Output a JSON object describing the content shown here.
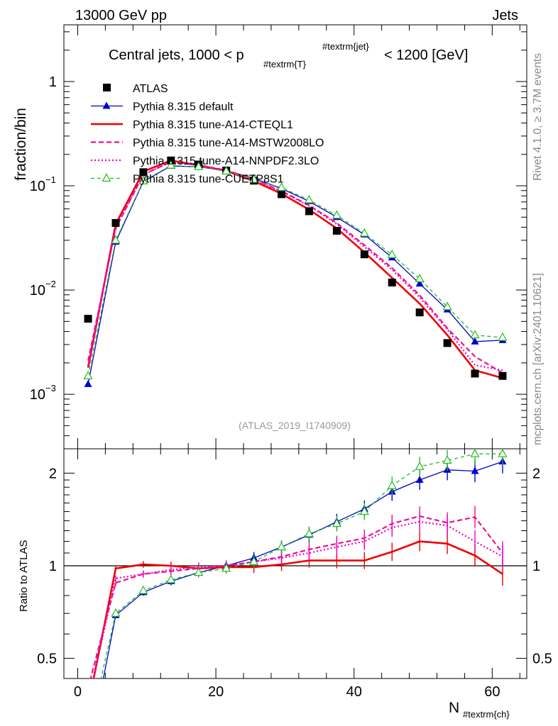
{
  "header": {
    "left": "13000 GeV pp",
    "right": "Jets"
  },
  "side": {
    "rivet": "Rivet 4.1.0, ≥ 3.7M events",
    "mcplots": "mcplots.cern.ch [arXiv:2401.10621]"
  },
  "colors": {
    "atlas": "#000000",
    "default": "#0000cc",
    "cteql1": "#ee0000",
    "mstw": "#ee1188",
    "nnpdf": "#ee00cc",
    "cuetp8s1": "#22bb22"
  },
  "chart_data": [
    {
      "type": "line",
      "title": "Central jets, 1000 < p",
      "title_sub": "#textrm{T}",
      "title_sup": "#textrm{jet}",
      "title_tail": "< 1200 [GeV]",
      "ylabel": "fraction/bin",
      "yscale": "log",
      "ylim": [
        0.0003,
        3.5
      ],
      "xlim": [
        -2,
        65
      ],
      "y_ticks": [
        {
          "value": 1,
          "base": "1",
          "exp": ""
        },
        {
          "value": 0.1,
          "base": "10",
          "exp": "−1"
        },
        {
          "value": 0.01,
          "base": "10",
          "exp": "−2"
        },
        {
          "value": 0.001,
          "base": "10",
          "exp": "−3"
        }
      ],
      "watermark": "(ATLAS_2019_I1740909)",
      "x": [
        1.5,
        5.5,
        9.5,
        13.5,
        17.5,
        21.5,
        25.5,
        29.5,
        33.5,
        37.5,
        41.5,
        45.5,
        49.5,
        53.5,
        57.5,
        61.5
      ],
      "series": [
        {
          "key": "atlas",
          "name": "ATLAS",
          "marker": "square",
          "line": "none",
          "values": [
            0.0053,
            0.044,
            0.135,
            0.175,
            0.16,
            0.14,
            0.112,
            0.083,
            0.057,
            0.037,
            0.022,
            0.0118,
            0.0061,
            0.0031,
            0.00158,
            0.0015
          ]
        },
        {
          "key": "default",
          "name": "Pythia 8.315 default",
          "marker": "triangle-up",
          "line": "solid",
          "values": [
            0.00125,
            0.029,
            0.11,
            0.155,
            0.152,
            0.14,
            0.118,
            0.094,
            0.071,
            0.05,
            0.034,
            0.0205,
            0.0115,
            0.0065,
            0.0032,
            0.0033
          ]
        },
        {
          "key": "cteql1",
          "name": "Pythia 8.315 tune-A14-CTEQL1",
          "marker": "none",
          "line": "solid-thick",
          "values": [
            0.0018,
            0.043,
            0.137,
            0.175,
            0.157,
            0.139,
            0.111,
            0.084,
            0.059,
            0.039,
            0.023,
            0.0131,
            0.0074,
            0.0037,
            0.0017,
            0.00143
          ]
        },
        {
          "key": "mstw",
          "name": "Pythia 8.315 tune-A14-MSTW2008LO",
          "marker": "none",
          "line": "dashed",
          "values": [
            0.0021,
            0.039,
            0.128,
            0.17,
            0.158,
            0.141,
            0.116,
            0.089,
            0.065,
            0.044,
            0.027,
            0.0163,
            0.0089,
            0.0043,
            0.0023,
            0.0016
          ]
        },
        {
          "key": "nnpdf",
          "name": "Pythia 8.315 tune-A14-NNPDF2.3LO",
          "marker": "none",
          "line": "dotted",
          "values": [
            0.0019,
            0.04,
            0.128,
            0.169,
            0.158,
            0.14,
            0.115,
            0.088,
            0.064,
            0.043,
            0.026,
            0.0157,
            0.0085,
            0.0042,
            0.0019,
            0.0017
          ]
        },
        {
          "key": "cuetp8s1",
          "name": "Pythia 8.315 tune-CUETP8S1",
          "marker": "triangle-open",
          "line": "dashed-thin",
          "values": [
            0.0015,
            0.03,
            0.111,
            0.157,
            0.152,
            0.138,
            0.115,
            0.096,
            0.073,
            0.052,
            0.035,
            0.0218,
            0.0128,
            0.0069,
            0.0037,
            0.0035
          ]
        }
      ]
    },
    {
      "type": "line",
      "ylabel": "Ratio to ATLAS",
      "xlabel": "N",
      "xlabel_sub": "#textrm{ch}",
      "yscale": "log",
      "ylim": [
        0.43,
        2.4
      ],
      "xlim": [
        -2,
        65
      ],
      "x_ticks": [
        0,
        20,
        40,
        60
      ],
      "y_ticks": [
        0.5,
        1,
        2
      ],
      "reference_line": 1,
      "x": [
        1.5,
        5.5,
        9.5,
        13.5,
        17.5,
        21.5,
        25.5,
        29.5,
        33.5,
        37.5,
        41.5,
        45.5,
        49.5,
        53.5,
        57.5,
        61.5
      ],
      "series": [
        {
          "key": "default",
          "values": [
            0.24,
            0.69,
            0.82,
            0.89,
            0.95,
            1.0,
            1.06,
            1.15,
            1.26,
            1.39,
            1.53,
            1.74,
            1.9,
            2.05,
            2.03,
            2.18
          ]
        },
        {
          "key": "cteql1",
          "values": [
            0.35,
            0.98,
            1.01,
            1.0,
            0.98,
            0.99,
            0.99,
            1.01,
            1.04,
            1.04,
            1.04,
            1.11,
            1.2,
            1.18,
            1.08,
            0.94
          ]
        },
        {
          "key": "mstw",
          "values": [
            0.4,
            0.88,
            0.94,
            0.96,
            0.98,
            1.0,
            1.03,
            1.07,
            1.13,
            1.18,
            1.23,
            1.37,
            1.45,
            1.38,
            1.44,
            1.1
          ]
        },
        {
          "key": "nnpdf",
          "values": [
            0.36,
            0.91,
            0.94,
            0.97,
            0.99,
            1.0,
            1.03,
            1.06,
            1.1,
            1.15,
            1.2,
            1.33,
            1.39,
            1.35,
            1.2,
            1.07
          ]
        },
        {
          "key": "cuetp8s1",
          "values": [
            0.28,
            0.7,
            0.83,
            0.9,
            0.95,
            0.98,
            1.03,
            1.15,
            1.27,
            1.37,
            1.5,
            1.82,
            2.1,
            2.2,
            2.31,
            2.31
          ]
        }
      ]
    }
  ]
}
